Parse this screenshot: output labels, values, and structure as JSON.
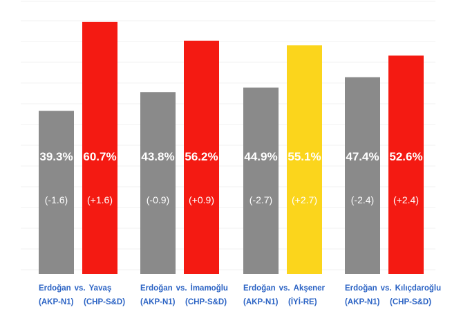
{
  "colors": {
    "erdogan": "#8a8a8a",
    "opposition": "#f41a12",
    "iyi": "#fbd51c",
    "label_text": "#2b63c4"
  },
  "chart_data": {
    "type": "bar",
    "title": "",
    "xlabel": "",
    "ylabel": "",
    "ylim": [
      0,
      70
    ],
    "grid": true,
    "legend": "none",
    "matchups": [
      {
        "left": {
          "name": "Erdoğan",
          "party": "(AKP-N1)",
          "value": 39.3,
          "pct_label": "39.3%",
          "change": "(-1.6)",
          "color": "#8a8a8a"
        },
        "vs": "vs.",
        "right": {
          "name": "Yavaş",
          "party": "(CHP-S&D)",
          "value": 60.7,
          "pct_label": "60.7%",
          "change": "(+1.6)",
          "color": "#f41a12"
        }
      },
      {
        "left": {
          "name": "Erdoğan",
          "party": "(AKP-N1)",
          "value": 43.8,
          "pct_label": "43.8%",
          "change": "(-0.9)",
          "color": "#8a8a8a"
        },
        "vs": "vs.",
        "right": {
          "name": "İmamoğlu",
          "party": "(CHP-S&D)",
          "value": 56.2,
          "pct_label": "56.2%",
          "change": "(+0.9)",
          "color": "#f41a12"
        }
      },
      {
        "left": {
          "name": "Erdoğan",
          "party": "(AKP-N1)",
          "value": 44.9,
          "pct_label": "44.9%",
          "change": "(-2.7)",
          "color": "#8a8a8a"
        },
        "vs": "vs.",
        "right": {
          "name": "Akşener",
          "party": "(İYİ-RE)",
          "value": 55.1,
          "pct_label": "55.1%",
          "change": "(+2.7)",
          "color": "#fbd51c"
        }
      },
      {
        "left": {
          "name": "Erdoğan",
          "party": "(AKP-N1)",
          "value": 47.4,
          "pct_label": "47.4%",
          "change": "(-2.4)",
          "color": "#8a8a8a"
        },
        "vs": "vs.",
        "right": {
          "name": "Kılıçdaroğlu",
          "party": "(CHP-S&D)",
          "value": 52.6,
          "pct_label": "52.6%",
          "change": "(+2.4)",
          "color": "#f41a12"
        }
      }
    ]
  }
}
